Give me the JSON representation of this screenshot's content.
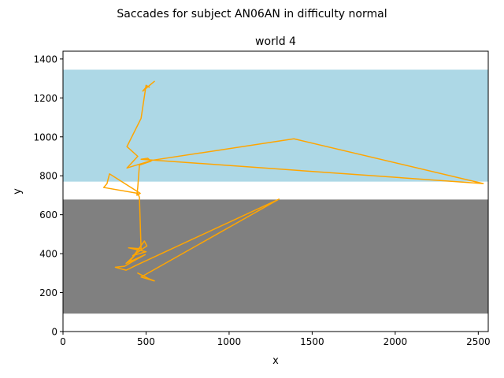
{
  "figure": {
    "suptitle": "Saccades for subject AN06AN in difficulty normal"
  },
  "chart_data": {
    "type": "line",
    "title": "world 4",
    "xlabel": "x",
    "ylabel": "y",
    "xlim": [
      0,
      2560
    ],
    "ylim": [
      0,
      1440
    ],
    "xticks": [
      0,
      500,
      1000,
      1500,
      2000,
      2500
    ],
    "yticks": [
      0,
      200,
      400,
      600,
      800,
      1000,
      1200,
      1400
    ],
    "grid": false,
    "legend": "none",
    "regions": [
      {
        "name": "upper band",
        "y0": 770,
        "y1": 1345,
        "color": "#add8e6"
      },
      {
        "name": "lower band",
        "y0": 92,
        "y1": 678,
        "color": "#808080"
      }
    ],
    "series": [
      {
        "color": "#ffa500",
        "x": [
          550,
          480,
          505,
          520,
          500,
          470,
          385,
          450,
          385,
          540,
          1390,
          2530,
          470,
          510,
          530,
          460,
          450,
          445,
          465,
          280,
          265,
          245,
          450,
          460,
          470,
          395,
          500,
          420,
          505,
          490,
          400,
          430,
          380,
          495,
          420,
          370,
          315,
          380,
          440,
          1300,
          470,
          550,
          520,
          450
        ],
        "y": [
          1285,
          1235,
          1260,
          1255,
          1265,
          1095,
          950,
          900,
          840,
          880,
          990,
          760,
          885,
          890,
          875,
          855,
          740,
          700,
          710,
          810,
          760,
          740,
          710,
          690,
          425,
          430,
          410,
          390,
          440,
          465,
          360,
          390,
          350,
          395,
          360,
          335,
          330,
          315,
          340,
          680,
          280,
          260,
          270,
          300
        ]
      }
    ]
  }
}
